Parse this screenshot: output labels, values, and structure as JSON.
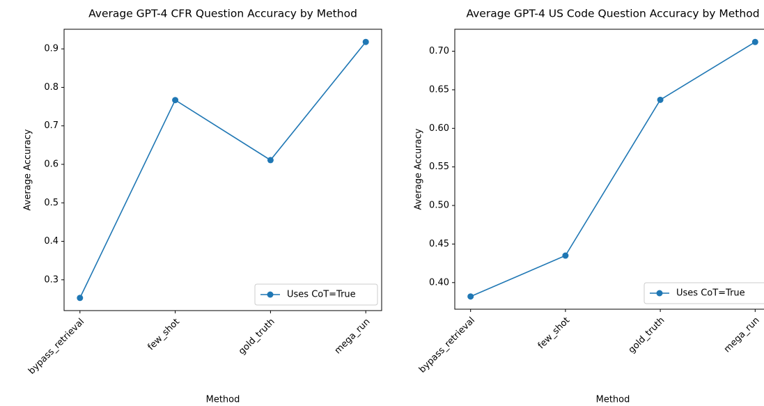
{
  "chart_data": [
    {
      "type": "line",
      "title": "Average GPT-4 CFR Question Accuracy by Method",
      "xlabel": "Method",
      "ylabel": "Average Accuracy",
      "categories": [
        "bypass_retrieval",
        "few_shot",
        "gold_truth",
        "mega_run"
      ],
      "series": [
        {
          "name": "Uses CoT=True",
          "color": "#1f77b4",
          "values": [
            0.253,
            0.767,
            0.611,
            0.918
          ]
        }
      ],
      "ylim": [
        0.22,
        0.951
      ],
      "yticks": [
        0.3,
        0.4,
        0.5,
        0.6,
        0.7,
        0.8,
        0.9
      ],
      "legend": "lower right",
      "grid": false
    },
    {
      "type": "line",
      "title": "Average GPT-4 US Code Question Accuracy by Method",
      "xlabel": "Method",
      "ylabel": "Average Accuracy",
      "categories": [
        "bypass_retrieval",
        "few_shot",
        "gold_truth",
        "mega_run"
      ],
      "series": [
        {
          "name": "Uses CoT=True",
          "color": "#1f77b4",
          "values": [
            0.382,
            0.435,
            0.637,
            0.712
          ]
        }
      ],
      "ylim": [
        0.3655,
        0.7285
      ],
      "yticks": [
        {
          "value": 0.4,
          "label": "0.40"
        },
        0.45,
        {
          "value": 0.5,
          "label": "0.50"
        },
        0.55,
        {
          "value": 0.6,
          "label": "0.60"
        },
        0.65,
        {
          "value": 0.7,
          "label": "0.70"
        }
      ],
      "legend": "lower right",
      "grid": false
    }
  ]
}
